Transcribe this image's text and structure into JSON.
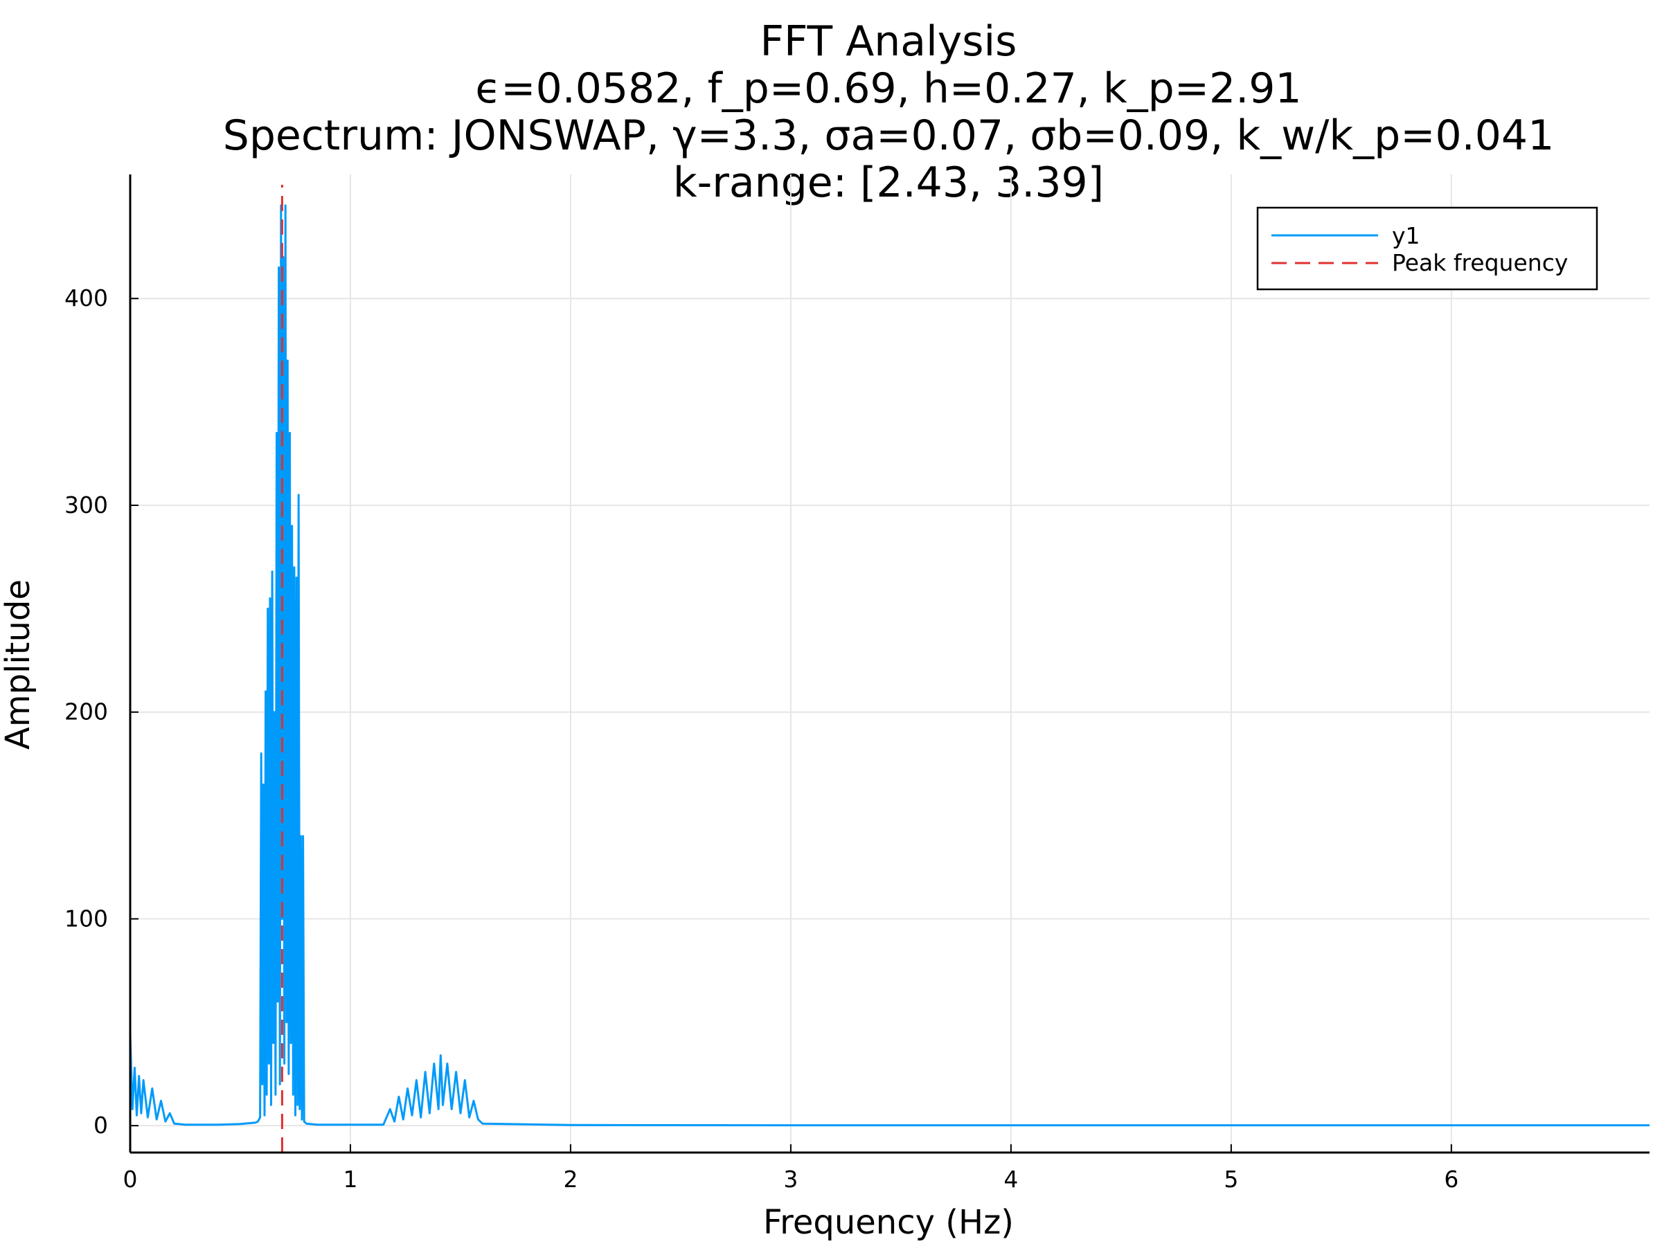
{
  "chart_data": {
    "type": "line",
    "title_lines": [
      "FFT Analysis",
      "ϵ=0.0582, f_p=0.69, h=0.27, k_p=2.91",
      "Spectrum: JONSWAP, γ=3.3, σa=0.07, σb=0.09, k_w/k_p=0.041",
      "k-range: [2.43, 3.39]"
    ],
    "xlabel": "Frequency (Hz)",
    "ylabel": "Amplitude",
    "xlim": [
      0,
      6.9
    ],
    "ylim": [
      -13,
      460
    ],
    "xticks": [
      0,
      1,
      2,
      3,
      4,
      5,
      6
    ],
    "yticks": [
      0,
      100,
      200,
      300,
      400
    ],
    "grid": true,
    "legend_position": "top-right",
    "colors": {
      "series": "#009AFA",
      "peak": "#E03030",
      "grid": "#E6E6E6",
      "axis": "#000000"
    },
    "peak_frequency": 0.69,
    "series": [
      {
        "name": "y1",
        "style": "solid",
        "x": [
          0.0,
          0.01,
          0.02,
          0.03,
          0.04,
          0.05,
          0.06,
          0.08,
          0.1,
          0.12,
          0.14,
          0.16,
          0.18,
          0.2,
          0.25,
          0.3,
          0.4,
          0.5,
          0.57,
          0.58,
          0.59,
          0.595,
          0.6,
          0.605,
          0.61,
          0.615,
          0.62,
          0.625,
          0.63,
          0.635,
          0.64,
          0.645,
          0.65,
          0.655,
          0.66,
          0.665,
          0.67,
          0.675,
          0.68,
          0.685,
          0.69,
          0.695,
          0.7,
          0.705,
          0.71,
          0.715,
          0.72,
          0.725,
          0.73,
          0.735,
          0.74,
          0.745,
          0.75,
          0.755,
          0.76,
          0.765,
          0.77,
          0.775,
          0.78,
          0.785,
          0.79,
          0.8,
          0.85,
          1.0,
          1.15,
          1.18,
          1.2,
          1.22,
          1.24,
          1.26,
          1.28,
          1.3,
          1.32,
          1.34,
          1.36,
          1.38,
          1.4,
          1.41,
          1.42,
          1.44,
          1.46,
          1.48,
          1.5,
          1.52,
          1.54,
          1.56,
          1.58,
          1.6,
          2.0,
          3.0,
          4.0,
          5.0,
          6.0,
          6.9
        ],
        "values": [
          44,
          8,
          28,
          5,
          24,
          6,
          22,
          4,
          18,
          3,
          12,
          2,
          6,
          1,
          0.5,
          0.5,
          0.5,
          0.8,
          1.5,
          2,
          4,
          180,
          20,
          165,
          5,
          210,
          15,
          250,
          30,
          255,
          10,
          268,
          40,
          200,
          15,
          335,
          60,
          415,
          20,
          445,
          100,
          420,
          30,
          445,
          50,
          370,
          25,
          335,
          40,
          290,
          15,
          270,
          5,
          265,
          10,
          305,
          8,
          140,
          3,
          140,
          2,
          1,
          0.5,
          0.5,
          0.5,
          8,
          2,
          14,
          3,
          18,
          5,
          22,
          4,
          26,
          6,
          30,
          8,
          34,
          10,
          30,
          8,
          26,
          6,
          22,
          4,
          12,
          3,
          1,
          0.3,
          0.2,
          0.2,
          0.2,
          0.2,
          0.2
        ]
      },
      {
        "name": "Peak frequency",
        "style": "dashed",
        "x": [
          0.69,
          0.69
        ],
        "values": [
          -13,
          455
        ]
      }
    ]
  }
}
